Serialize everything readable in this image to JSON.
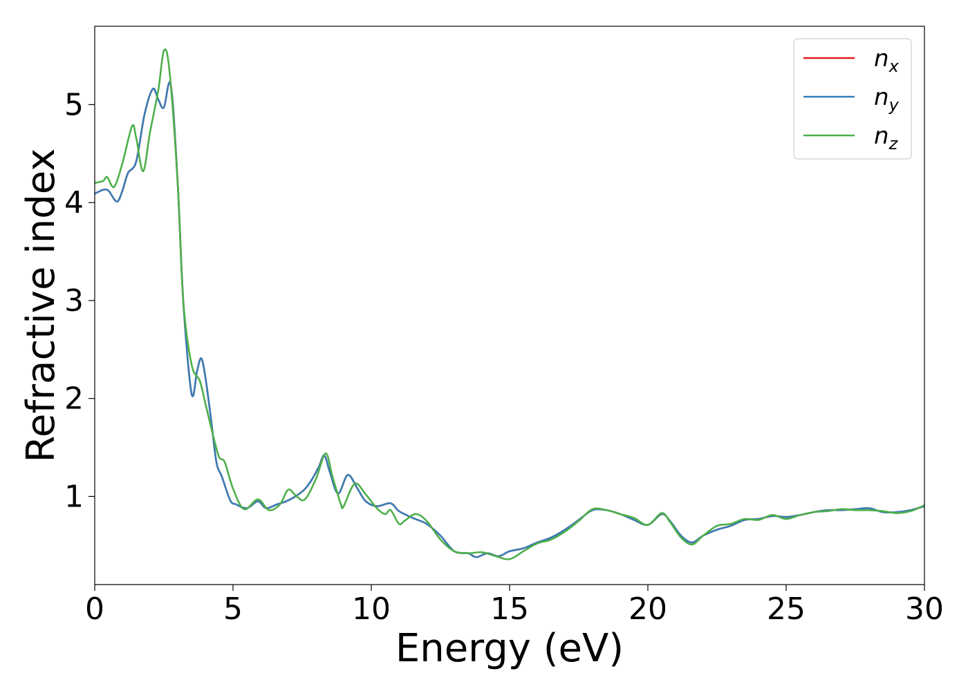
{
  "chart_data": {
    "type": "line",
    "title": "",
    "xlabel": "Energy (eV)",
    "ylabel": "Refractive index",
    "xlim": [
      0,
      30
    ],
    "ylim": [
      0.1,
      5.8
    ],
    "xticks": [
      0,
      5,
      10,
      15,
      20,
      25,
      30
    ],
    "xtick_labels": [
      "0",
      "5",
      "10",
      "15",
      "20",
      "25",
      "30"
    ],
    "yticks": [
      1,
      2,
      3,
      4,
      5
    ],
    "ytick_labels": [
      "1",
      "2",
      "3",
      "4",
      "5"
    ],
    "grid": false,
    "legend_position": "top-right",
    "series": [
      {
        "name": "n_x",
        "legend_base": "n",
        "legend_sub": "x",
        "color": "#e41a1c",
        "x": [
          0,
          0.3,
          0.5,
          0.8,
          1.0,
          1.2,
          1.5,
          1.8,
          2.1,
          2.3,
          2.5,
          2.75,
          3.0,
          3.2,
          3.5,
          3.7,
          3.85,
          4.0,
          4.2,
          4.4,
          4.6,
          4.9,
          5.1,
          5.5,
          5.9,
          6.2,
          6.6,
          7.0,
          7.5,
          7.8,
          8.1,
          8.3,
          8.5,
          8.8,
          9.15,
          9.5,
          9.8,
          10.2,
          10.7,
          11.0,
          11.5,
          12.0,
          12.5,
          13.0,
          13.5,
          13.8,
          14.2,
          14.6,
          15.0,
          15.5,
          16.0,
          16.5,
          17.0,
          17.5,
          18.0,
          18.5,
          19.0,
          19.5,
          20.0,
          20.5,
          20.8,
          21.2,
          21.6,
          22.0,
          22.5,
          23.0,
          23.5,
          24.0,
          24.5,
          25.0,
          25.5,
          26.0,
          26.5,
          27.0,
          27.5,
          28.0,
          28.5,
          29.0,
          29.5,
          30.0
        ],
        "values": [
          4.09,
          4.13,
          4.12,
          4.01,
          4.12,
          4.3,
          4.42,
          4.9,
          5.16,
          5.05,
          4.97,
          5.2,
          4.2,
          3.0,
          2.05,
          2.28,
          2.41,
          2.22,
          1.8,
          1.35,
          1.2,
          0.96,
          0.92,
          0.88,
          0.95,
          0.88,
          0.92,
          0.96,
          1.05,
          1.15,
          1.3,
          1.42,
          1.25,
          1.03,
          1.22,
          1.08,
          0.95,
          0.9,
          0.93,
          0.85,
          0.78,
          0.72,
          0.6,
          0.44,
          0.42,
          0.38,
          0.42,
          0.39,
          0.44,
          0.47,
          0.53,
          0.58,
          0.66,
          0.76,
          0.86,
          0.86,
          0.82,
          0.76,
          0.71,
          0.82,
          0.75,
          0.6,
          0.53,
          0.6,
          0.66,
          0.7,
          0.76,
          0.77,
          0.8,
          0.79,
          0.81,
          0.84,
          0.86,
          0.86,
          0.87,
          0.88,
          0.84,
          0.84,
          0.86,
          0.9
        ]
      },
      {
        "name": "n_y",
        "legend_base": "n",
        "legend_sub": "y",
        "color": "#377eb8",
        "x": [
          0,
          0.3,
          0.5,
          0.8,
          1.0,
          1.2,
          1.5,
          1.8,
          2.1,
          2.3,
          2.5,
          2.75,
          3.0,
          3.2,
          3.5,
          3.7,
          3.85,
          4.0,
          4.2,
          4.4,
          4.6,
          4.9,
          5.1,
          5.5,
          5.9,
          6.2,
          6.6,
          7.0,
          7.5,
          7.8,
          8.1,
          8.3,
          8.5,
          8.8,
          9.15,
          9.5,
          9.8,
          10.2,
          10.7,
          11.0,
          11.5,
          12.0,
          12.5,
          13.0,
          13.5,
          13.8,
          14.2,
          14.6,
          15.0,
          15.5,
          16.0,
          16.5,
          17.0,
          17.5,
          18.0,
          18.5,
          19.0,
          19.5,
          20.0,
          20.5,
          20.8,
          21.2,
          21.6,
          22.0,
          22.5,
          23.0,
          23.5,
          24.0,
          24.5,
          25.0,
          25.5,
          26.0,
          26.5,
          27.0,
          27.5,
          28.0,
          28.5,
          29.0,
          29.5,
          30.0
        ],
        "values": [
          4.09,
          4.13,
          4.12,
          4.01,
          4.12,
          4.3,
          4.42,
          4.9,
          5.16,
          5.05,
          4.97,
          5.2,
          4.2,
          3.0,
          2.05,
          2.28,
          2.41,
          2.22,
          1.8,
          1.35,
          1.2,
          0.96,
          0.92,
          0.88,
          0.95,
          0.88,
          0.92,
          0.96,
          1.05,
          1.15,
          1.3,
          1.42,
          1.25,
          1.03,
          1.22,
          1.08,
          0.95,
          0.9,
          0.93,
          0.85,
          0.78,
          0.72,
          0.6,
          0.44,
          0.42,
          0.38,
          0.42,
          0.39,
          0.44,
          0.47,
          0.53,
          0.58,
          0.66,
          0.76,
          0.86,
          0.86,
          0.82,
          0.76,
          0.71,
          0.82,
          0.75,
          0.6,
          0.53,
          0.6,
          0.66,
          0.7,
          0.76,
          0.77,
          0.8,
          0.79,
          0.81,
          0.84,
          0.86,
          0.86,
          0.87,
          0.88,
          0.84,
          0.84,
          0.86,
          0.9
        ]
      },
      {
        "name": "n_z",
        "legend_base": "n",
        "legend_sub": "z",
        "color": "#4daf4a",
        "x": [
          0,
          0.3,
          0.45,
          0.7,
          1.0,
          1.35,
          1.5,
          1.75,
          2.0,
          2.3,
          2.5,
          2.7,
          3.0,
          3.2,
          3.5,
          3.8,
          4.0,
          4.3,
          4.5,
          4.7,
          5.0,
          5.4,
          5.9,
          6.3,
          6.7,
          7.0,
          7.3,
          7.6,
          8.0,
          8.35,
          8.6,
          8.9,
          9.0,
          9.4,
          9.8,
          10.2,
          10.5,
          10.7,
          11.0,
          11.2,
          11.6,
          12.0,
          12.5,
          13.0,
          13.5,
          14.0,
          14.5,
          15.0,
          15.5,
          16.0,
          16.5,
          17.0,
          17.5,
          18.0,
          18.5,
          19.0,
          19.5,
          20.0,
          20.5,
          20.8,
          21.2,
          21.6,
          22.0,
          22.5,
          23.0,
          23.5,
          24.0,
          24.5,
          25.0,
          25.5,
          26.0,
          26.5,
          27.0,
          27.5,
          28.0,
          28.5,
          29.0,
          29.5,
          30.0
        ],
        "values": [
          4.2,
          4.22,
          4.26,
          4.16,
          4.4,
          4.78,
          4.66,
          4.32,
          4.72,
          5.15,
          5.55,
          5.35,
          4.2,
          3.0,
          2.35,
          2.18,
          1.95,
          1.6,
          1.4,
          1.35,
          1.08,
          0.87,
          0.97,
          0.86,
          0.92,
          1.07,
          1.0,
          0.97,
          1.18,
          1.44,
          1.2,
          0.92,
          0.9,
          1.13,
          1.02,
          0.88,
          0.82,
          0.86,
          0.72,
          0.75,
          0.82,
          0.75,
          0.56,
          0.44,
          0.42,
          0.43,
          0.39,
          0.36,
          0.44,
          0.52,
          0.56,
          0.64,
          0.75,
          0.87,
          0.86,
          0.82,
          0.78,
          0.71,
          0.83,
          0.74,
          0.58,
          0.51,
          0.6,
          0.7,
          0.72,
          0.77,
          0.76,
          0.81,
          0.77,
          0.81,
          0.84,
          0.85,
          0.87,
          0.86,
          0.86,
          0.85,
          0.83,
          0.85,
          0.91
        ]
      }
    ]
  }
}
